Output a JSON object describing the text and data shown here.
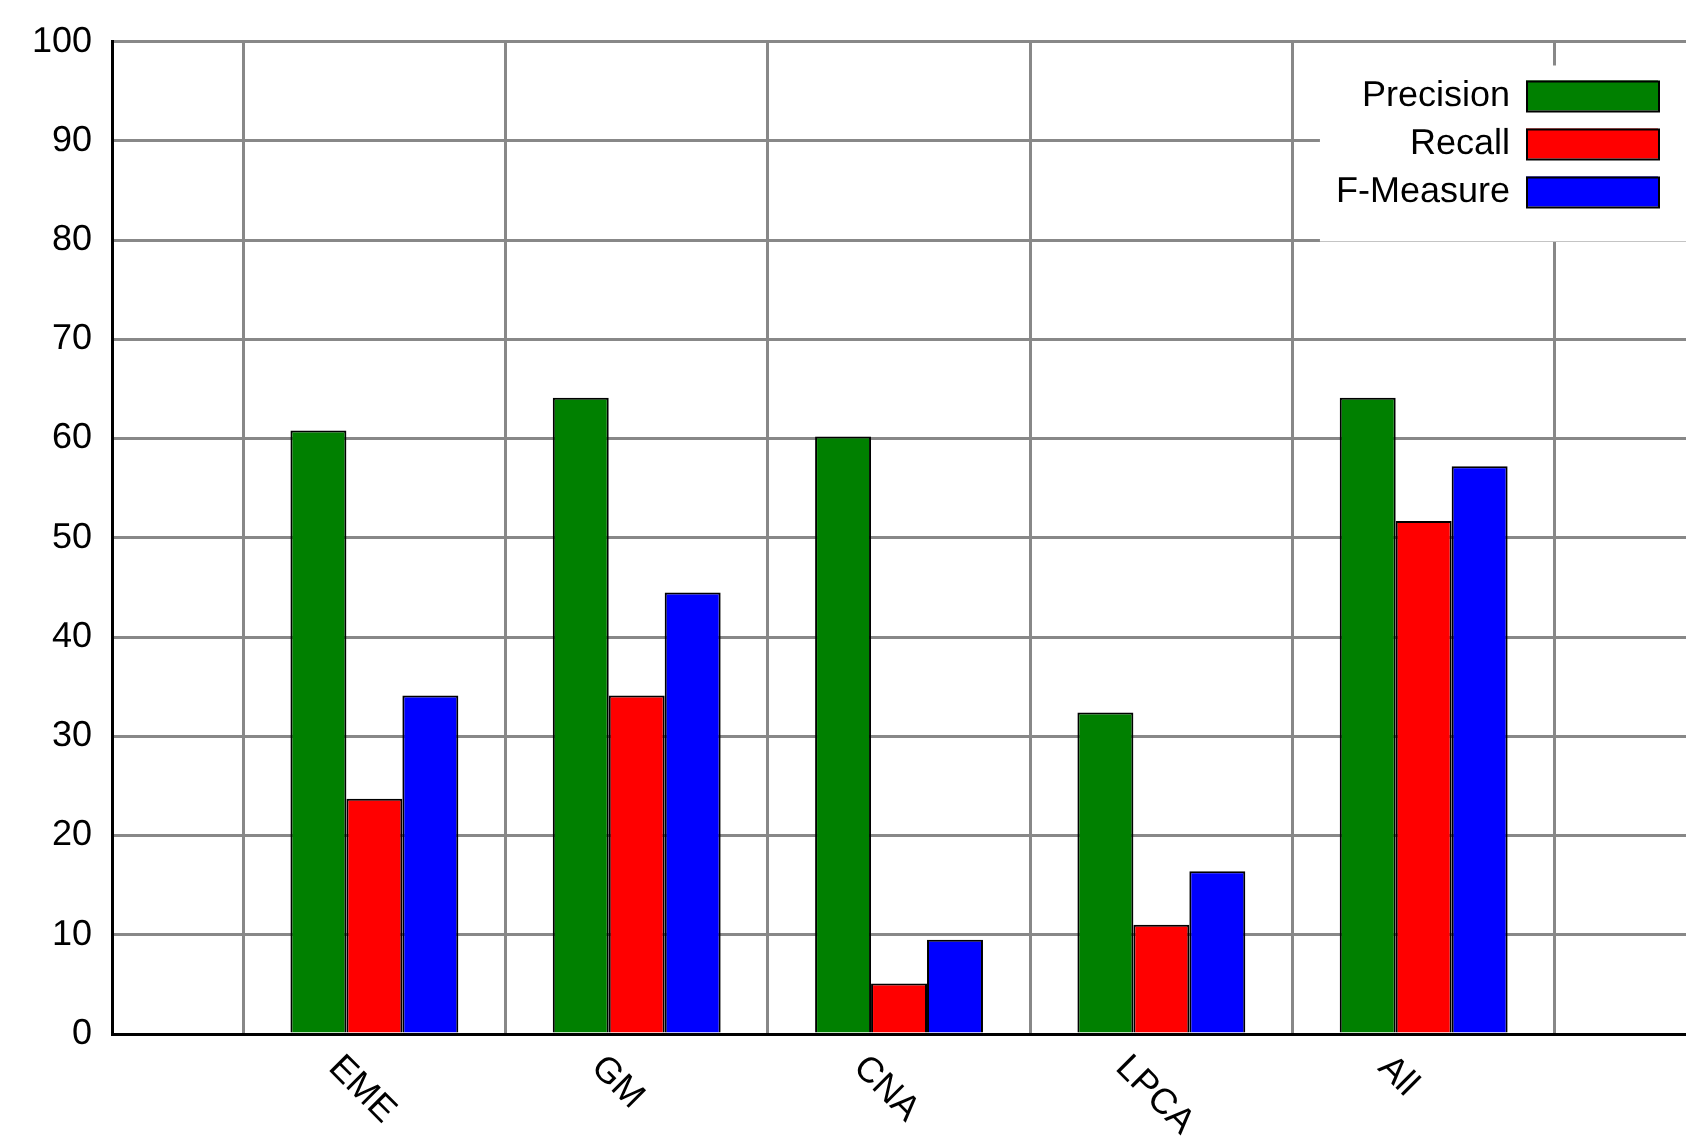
{
  "chart_data": {
    "type": "bar",
    "categories": [
      null,
      "EME",
      "GM",
      "CNA",
      "LPCA",
      "All",
      null
    ],
    "series": [
      {
        "name": "Precision",
        "color": "#008000",
        "values": [
          null,
          60.8,
          64.1,
          60.2,
          32.4,
          64.1,
          null
        ]
      },
      {
        "name": "Recall",
        "color": "#ff0000",
        "values": [
          null,
          23.7,
          34.1,
          5.1,
          11,
          51.7,
          null
        ]
      },
      {
        "name": "F-Measure",
        "color": "#0000ff",
        "values": [
          null,
          34.1,
          44.5,
          9.5,
          16.4,
          57.2,
          null
        ]
      }
    ],
    "ylim": [
      0,
      100
    ],
    "yticks": [
      0,
      10,
      20,
      30,
      40,
      50,
      60,
      70,
      80,
      90,
      100
    ],
    "grid": true,
    "legend": "top right"
  }
}
